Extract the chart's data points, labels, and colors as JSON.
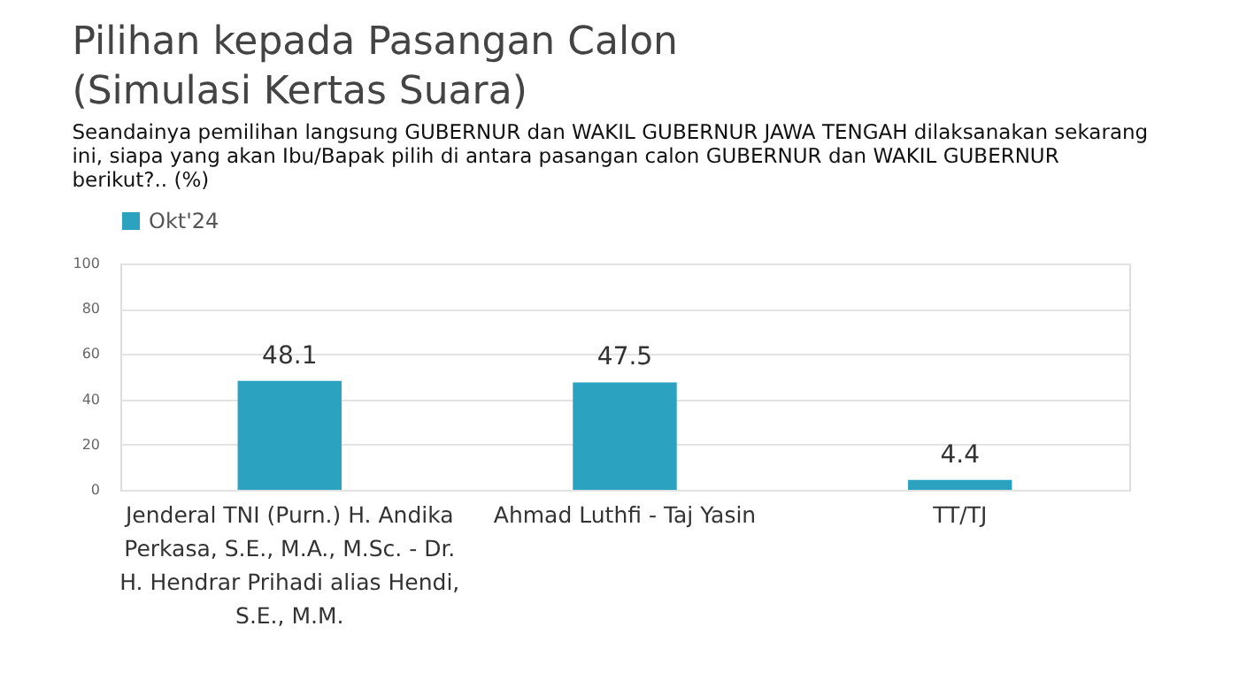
{
  "chart_data": {
    "type": "bar",
    "title": "Pilihan kepada Pasangan Calon\n(Simulasi Kertas Suara)",
    "subtitle": "Seandainya pemilihan langsung GUBERNUR dan WAKIL GUBERNUR JAWA TENGAH dilaksanakan sekarang ini, siapa yang akan Ibu/Bapak pilih di antara pasangan calon GUBERNUR dan WAKIL GUBERNUR berikut?.. (%)",
    "categories": [
      "Jenderal TNI (Purn.) H. Andika Perkasa, S.E., M.A., M.Sc. - Dr. H. Hendrar Prihadi alias Hendi, S.E., M.M.",
      "Ahmad Luthfi - Taj Yasin",
      "TT/TJ"
    ],
    "series": [
      {
        "name": "Okt'24",
        "color": "#2ba3c0",
        "values": [
          48.1,
          47.5,
          4.4
        ]
      }
    ],
    "ylim": [
      0,
      100
    ],
    "yticks": [
      0,
      20,
      40,
      60,
      80,
      100
    ],
    "grid": "y",
    "legend": "top",
    "data_labels": true
  }
}
